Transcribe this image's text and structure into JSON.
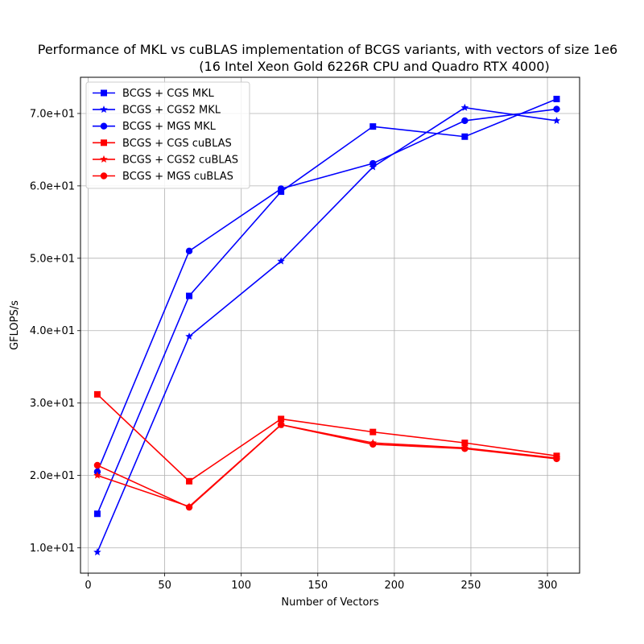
{
  "chart_data": {
    "type": "line",
    "title": "Performance of MKL vs cuBLAS implementation of BCGS variants, with vectors of size 1e6",
    "subtitle": "(16 Intel Xeon Gold 6226R CPU and Quadro RTX 4000)",
    "xlabel": "Number of Vectors",
    "ylabel": "GFLOPS/s",
    "xlim": [
      -5,
      321
    ],
    "ylim": [
      6.5,
      75
    ],
    "xticks": [
      0,
      50,
      100,
      150,
      200,
      250,
      300
    ],
    "xtick_labels": [
      "0",
      "50",
      "100",
      "150",
      "200",
      "250",
      "300"
    ],
    "yticks": [
      10,
      20,
      30,
      40,
      50,
      60,
      70
    ],
    "ytick_labels": [
      "1.0e+01",
      "2.0e+01",
      "3.0e+01",
      "4.0e+01",
      "5.0e+01",
      "6.0e+01",
      "7.0e+01"
    ],
    "grid": true,
    "legend_position": "top-left",
    "x": [
      6,
      66,
      126,
      186,
      246,
      306
    ],
    "series": [
      {
        "name": "BCGS + CGS MKL",
        "color": "#0000ff",
        "marker": "square",
        "values": [
          14.7,
          44.8,
          59.2,
          68.2,
          66.8,
          72.0
        ]
      },
      {
        "name": "BCGS + CGS2 MKL",
        "color": "#0000ff",
        "marker": "star",
        "values": [
          9.4,
          39.2,
          49.6,
          62.6,
          70.8,
          69.0
        ]
      },
      {
        "name": "BCGS + MGS MKL",
        "color": "#0000ff",
        "marker": "circle",
        "values": [
          20.5,
          51.0,
          59.6,
          63.1,
          69.0,
          70.6
        ]
      },
      {
        "name": "BCGS + CGS cuBLAS",
        "color": "#ff0000",
        "marker": "square",
        "values": [
          31.2,
          19.2,
          27.8,
          26.0,
          24.5,
          22.7
        ]
      },
      {
        "name": "BCGS + CGS2 cuBLAS",
        "color": "#ff0000",
        "marker": "star",
        "values": [
          20.0,
          15.7,
          27.0,
          24.5,
          23.8,
          22.4
        ]
      },
      {
        "name": "BCGS + MGS cuBLAS",
        "color": "#ff0000",
        "marker": "circle",
        "values": [
          21.4,
          15.6,
          27.0,
          24.3,
          23.7,
          22.3
        ]
      }
    ]
  }
}
